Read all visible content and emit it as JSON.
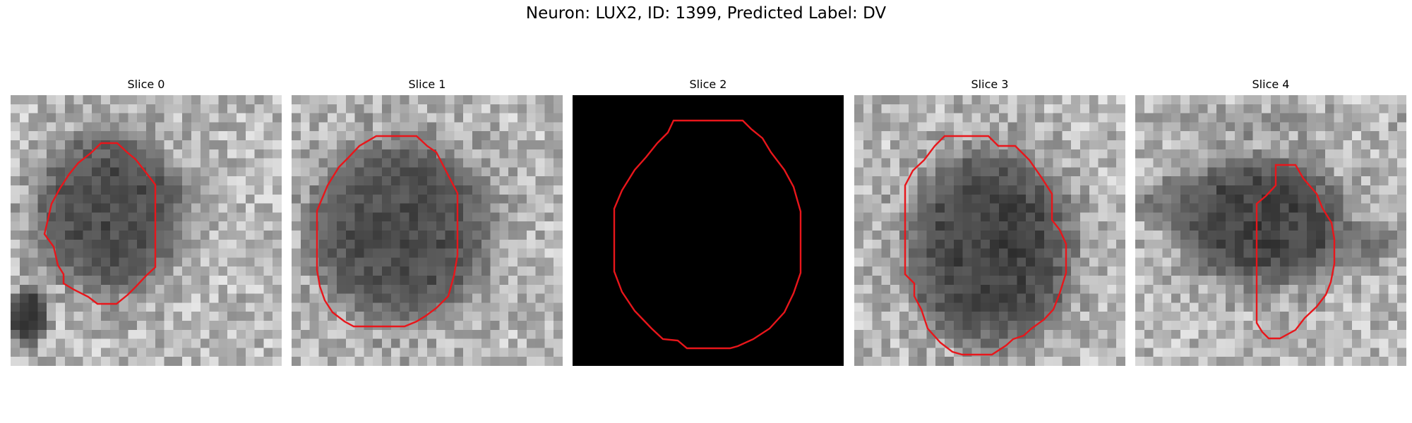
{
  "title": "Neuron: LUX2, ID: 1399, Predicted Label: DV",
  "panels": [
    {
      "title": "Slice 0",
      "image": "grayscale microscopy crop, dark round cell body",
      "blank": false
    },
    {
      "title": "Slice 1",
      "image": "grayscale microscopy crop, dark round cell body",
      "blank": false
    },
    {
      "title": "Slice 2",
      "image": "black empty slice",
      "blank": true
    },
    {
      "title": "Slice 3",
      "image": "grayscale microscopy crop, dark round cell body",
      "blank": false
    },
    {
      "title": "Slice 4",
      "image": "grayscale microscopy crop, dark cell body with partial outline",
      "blank": false
    }
  ],
  "colors": {
    "contour": "#e8161b",
    "background": "#ffffff",
    "blank_slice": "#000000"
  }
}
